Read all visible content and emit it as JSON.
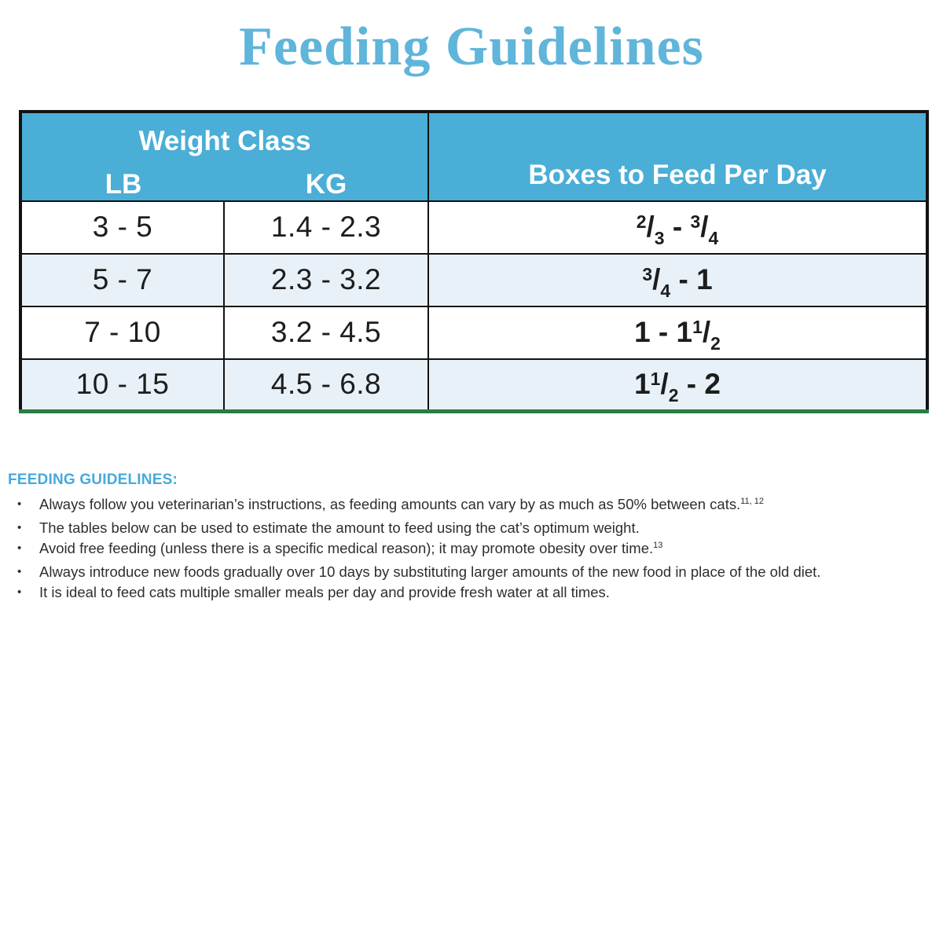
{
  "title": "Feeding Guidelines",
  "colors": {
    "title_blue": "#5fb5da",
    "header_blue": "#4aaed6",
    "notes_heading_blue": "#45aadb",
    "alt_row_blue": "#e8f1f8",
    "table_bottom_green": "#2a7c44",
    "border_black": "#121212"
  },
  "table": {
    "header": {
      "weight_class": "Weight Class",
      "lb": "LB",
      "kg": "KG",
      "boxes": "Boxes to Feed Per Day"
    },
    "rows": [
      {
        "lb": "3 - 5",
        "kg": "1.4 - 2.3",
        "boxes": [
          {
            "frac": [
              "2",
              "3"
            ]
          },
          {
            "txt": " - "
          },
          {
            "frac": [
              "3",
              "4"
            ]
          }
        ],
        "boxes_text": "2/3 - 3/4"
      },
      {
        "lb": "5 - 7",
        "kg": "2.3 - 3.2",
        "boxes": [
          {
            "frac": [
              "3",
              "4"
            ]
          },
          {
            "txt": " - 1"
          }
        ],
        "boxes_text": "3/4 - 1"
      },
      {
        "lb": "7 - 10",
        "kg": "3.2 - 4.5",
        "boxes": [
          {
            "txt": "1 - 1"
          },
          {
            "frac": [
              "1",
              "2"
            ]
          }
        ],
        "boxes_text": "1 - 1 1/2"
      },
      {
        "lb": "10 - 15",
        "kg": "4.5 - 6.8",
        "boxes": [
          {
            "txt": "1"
          },
          {
            "frac": [
              "1",
              "2"
            ]
          },
          {
            "txt": " - 2"
          }
        ],
        "boxes_text": "1 1/2 - 2"
      }
    ]
  },
  "notes": {
    "heading": "FEEDING GUIDELINES:",
    "bullets": [
      {
        "text": "Always follow you veterinarian’s instructions, as feeding amounts can vary by as much as 50% between cats.",
        "sup": "11, 12"
      },
      {
        "text": "The tables below can be used to estimate the amount to feed using the cat’s optimum weight.",
        "sup": ""
      },
      {
        "text": "Avoid free feeding (unless there is a specific medical reason); it may promote obesity over time.",
        "sup": "13"
      },
      {
        "text": "Always introduce new foods gradually over 10 days by substituting larger amounts of the new food in place of the old diet.",
        "sup": ""
      },
      {
        "text": "It is ideal to feed cats multiple smaller meals per day and provide fresh water at all times.",
        "sup": ""
      }
    ]
  }
}
